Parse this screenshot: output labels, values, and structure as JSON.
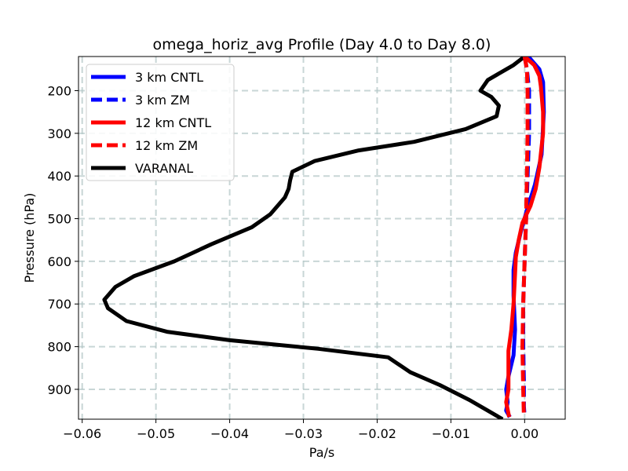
{
  "chart_data": {
    "type": "line",
    "title": "omega_horiz_avg Profile (Day 4.0 to Day 8.0)",
    "xlabel": "Pa/s",
    "ylabel": "Pressure (hPa)",
    "xlim": [
      -0.0605,
      0.0055
    ],
    "ylim": [
      970,
      120
    ],
    "y_inverted": true,
    "grid": true,
    "legend_position": "top-left",
    "x_ticks": [
      -0.06,
      -0.05,
      -0.04,
      -0.03,
      -0.02,
      -0.01,
      0.0
    ],
    "x_tick_labels": [
      "−0.06",
      "−0.05",
      "−0.04",
      "−0.03",
      "−0.02",
      "−0.01",
      "0.00"
    ],
    "y_ticks": [
      200,
      300,
      400,
      500,
      600,
      700,
      800,
      900
    ],
    "y_tick_labels": [
      "200",
      "300",
      "400",
      "500",
      "600",
      "700",
      "800",
      "900"
    ],
    "series": [
      {
        "name": "VARANAL",
        "color": "#000000",
        "style": "solid",
        "points": [
          [
            0.0,
            120
          ],
          [
            -0.0015,
            140
          ],
          [
            -0.005,
            175
          ],
          [
            -0.006,
            200
          ],
          [
            -0.0045,
            215
          ],
          [
            -0.0035,
            235
          ],
          [
            -0.0038,
            260
          ],
          [
            -0.008,
            290
          ],
          [
            -0.015,
            320
          ],
          [
            -0.0225,
            340
          ],
          [
            -0.0285,
            365
          ],
          [
            -0.0315,
            390
          ],
          [
            -0.0318,
            410
          ],
          [
            -0.032,
            430
          ],
          [
            -0.0325,
            450
          ],
          [
            -0.0345,
            490
          ],
          [
            -0.037,
            520
          ],
          [
            -0.0425,
            560
          ],
          [
            -0.0475,
            600
          ],
          [
            -0.053,
            635
          ],
          [
            -0.0555,
            660
          ],
          [
            -0.057,
            690
          ],
          [
            -0.0565,
            710
          ],
          [
            -0.054,
            740
          ],
          [
            -0.0485,
            765
          ],
          [
            -0.04,
            785
          ],
          [
            -0.028,
            805
          ],
          [
            -0.0185,
            825
          ],
          [
            -0.0155,
            860
          ],
          [
            -0.0115,
            890
          ],
          [
            -0.0075,
            925
          ],
          [
            -0.005,
            950
          ],
          [
            -0.003,
            970
          ]
        ]
      },
      {
        "name": "3 km CNTL",
        "color": "#0000ff",
        "style": "solid",
        "points": [
          [
            0.0005,
            120
          ],
          [
            0.002,
            150
          ],
          [
            0.0025,
            180
          ],
          [
            0.0026,
            250
          ],
          [
            0.0023,
            350
          ],
          [
            0.0014,
            420
          ],
          [
            0.0003,
            480
          ],
          [
            -0.0005,
            530
          ],
          [
            -0.0012,
            580
          ],
          [
            -0.0015,
            620
          ],
          [
            -0.0015,
            680
          ],
          [
            -0.0013,
            760
          ],
          [
            -0.0015,
            820
          ],
          [
            -0.0022,
            870
          ],
          [
            -0.0025,
            900
          ],
          [
            -0.0023,
            930
          ],
          [
            -0.0025,
            950
          ],
          [
            -0.002,
            965
          ]
        ]
      },
      {
        "name": "3 km ZM",
        "color": "#0000ff",
        "style": "dashed",
        "points": [
          [
            0.0,
            120
          ],
          [
            0.0003,
            150
          ],
          [
            0.0006,
            200
          ],
          [
            0.0006,
            300
          ],
          [
            0.0004,
            400
          ],
          [
            0.0002,
            500
          ],
          [
            0.0,
            600
          ],
          [
            -0.0002,
            700
          ],
          [
            -0.0002,
            800
          ],
          [
            -0.0001,
            880
          ],
          [
            -0.0001,
            940
          ],
          [
            0.0,
            965
          ]
        ]
      },
      {
        "name": "12 km CNTL",
        "color": "#ff0000",
        "style": "solid",
        "points": [
          [
            0.0,
            120
          ],
          [
            0.0013,
            140
          ],
          [
            0.002,
            165
          ],
          [
            0.0022,
            190
          ],
          [
            0.0025,
            250
          ],
          [
            0.0025,
            300
          ],
          [
            0.002,
            380
          ],
          [
            0.0015,
            430
          ],
          [
            0.0008,
            470
          ],
          [
            -0.0003,
            510
          ],
          [
            -0.0008,
            550
          ],
          [
            -0.0012,
            590
          ],
          [
            -0.0013,
            630
          ],
          [
            -0.0015,
            700
          ],
          [
            -0.0018,
            760
          ],
          [
            -0.0022,
            810
          ],
          [
            -0.0022,
            860
          ],
          [
            -0.0022,
            900
          ],
          [
            -0.0025,
            930
          ],
          [
            -0.0021,
            965
          ]
        ]
      },
      {
        "name": "12 km ZM",
        "color": "#ff0000",
        "style": "dashed",
        "points": [
          [
            0.0,
            120
          ],
          [
            0.0003,
            150
          ],
          [
            0.0004,
            200
          ],
          [
            0.0004,
            300
          ],
          [
            0.0003,
            400
          ],
          [
            0.0002,
            500
          ],
          [
            0.0,
            600
          ],
          [
            -0.0002,
            700
          ],
          [
            -0.0003,
            800
          ],
          [
            -0.0002,
            900
          ],
          [
            -0.0001,
            965
          ]
        ]
      }
    ],
    "legend_entries": [
      {
        "label": "3 km CNTL",
        "color": "#0000ff",
        "style": "solid"
      },
      {
        "label": "3 km ZM",
        "color": "#0000ff",
        "style": "dashed"
      },
      {
        "label": "12 km CNTL",
        "color": "#ff0000",
        "style": "solid"
      },
      {
        "label": "12 km ZM",
        "color": "#ff0000",
        "style": "dashed"
      },
      {
        "label": "VARANAL",
        "color": "#000000",
        "style": "solid"
      }
    ]
  }
}
